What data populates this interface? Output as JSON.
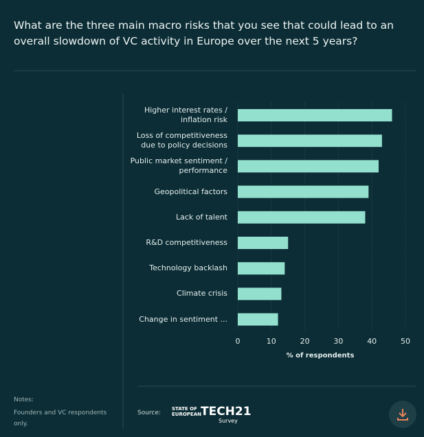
{
  "chart_data": {
    "type": "hbar",
    "title": "What are the three main macro risks that you see that could lead to an overall slowdown of VC activity in Europe over the next 5 years?",
    "categories": [
      "Higher interest rates / inflation risk",
      "Loss of competitiveness due to policy decisions",
      "Public market sentiment / performance",
      "Geopolitical factors",
      "Lack of talent",
      "R&D competitiveness",
      "Technology backlash",
      "Climate crisis",
      "Change in sentiment ..."
    ],
    "values": [
      46,
      43,
      42,
      39,
      38,
      15,
      14,
      13,
      12
    ],
    "color": "#94e0cf",
    "xlim": [
      0,
      50
    ],
    "xticks": [
      0,
      10,
      20,
      30,
      40,
      50
    ],
    "grid": true,
    "xlabel": "% of respondents"
  },
  "footer": {
    "notes_label": "Notes:",
    "notes": "Founders and VC respondents only.",
    "source_label": "Source:",
    "logo": {
      "line1": "STATE OF",
      "line2": "EUROPEAN",
      "brand": "TECH21",
      "sub": "Survey"
    }
  }
}
